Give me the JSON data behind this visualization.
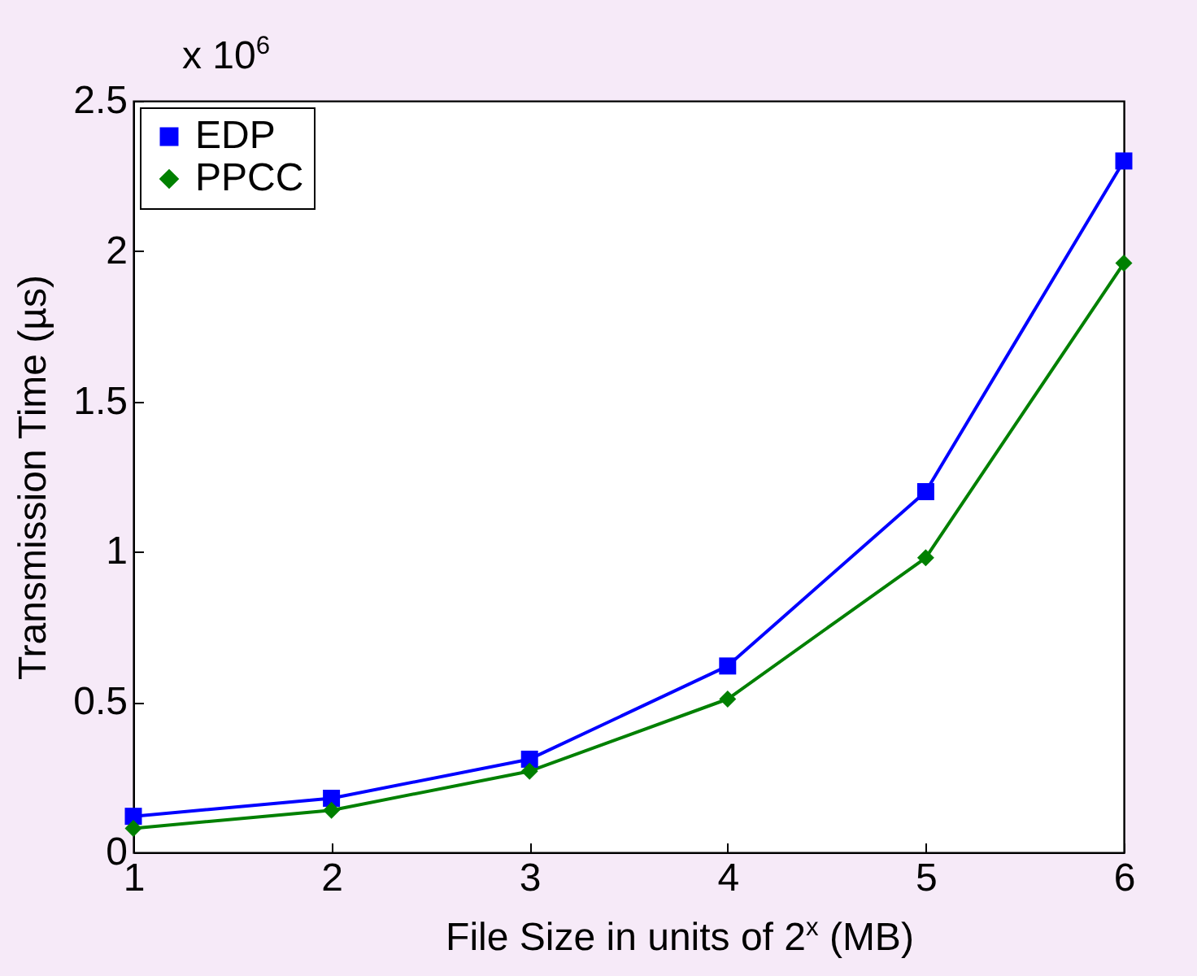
{
  "chart_data": {
    "type": "line",
    "xlabel": "File Size in units of 2$^{x}$ (MB)",
    "ylabel": "Transmission Time (µs)",
    "annotations": [
      "x 10$^{6}$"
    ],
    "x": [
      1,
      2,
      3,
      4,
      5,
      6
    ],
    "series": [
      {
        "name": "EDP",
        "color": "#0000ff",
        "marker": "square",
        "values": [
          0.12,
          0.18,
          0.31,
          0.62,
          1.2,
          2.3
        ]
      },
      {
        "name": "PPCC",
        "color": "#008000",
        "marker": "diamond",
        "values": [
          0.08,
          0.14,
          0.27,
          0.51,
          0.98,
          1.96
        ]
      }
    ],
    "xlim": [
      1,
      6
    ],
    "xticks": [
      1,
      2,
      3,
      4,
      5,
      6
    ],
    "ylim": [
      0,
      2.5
    ],
    "yticks": [
      0,
      0.5,
      1,
      1.5,
      2,
      2.5
    ],
    "grid": false,
    "legend": "top left",
    "line_style": "solid"
  }
}
